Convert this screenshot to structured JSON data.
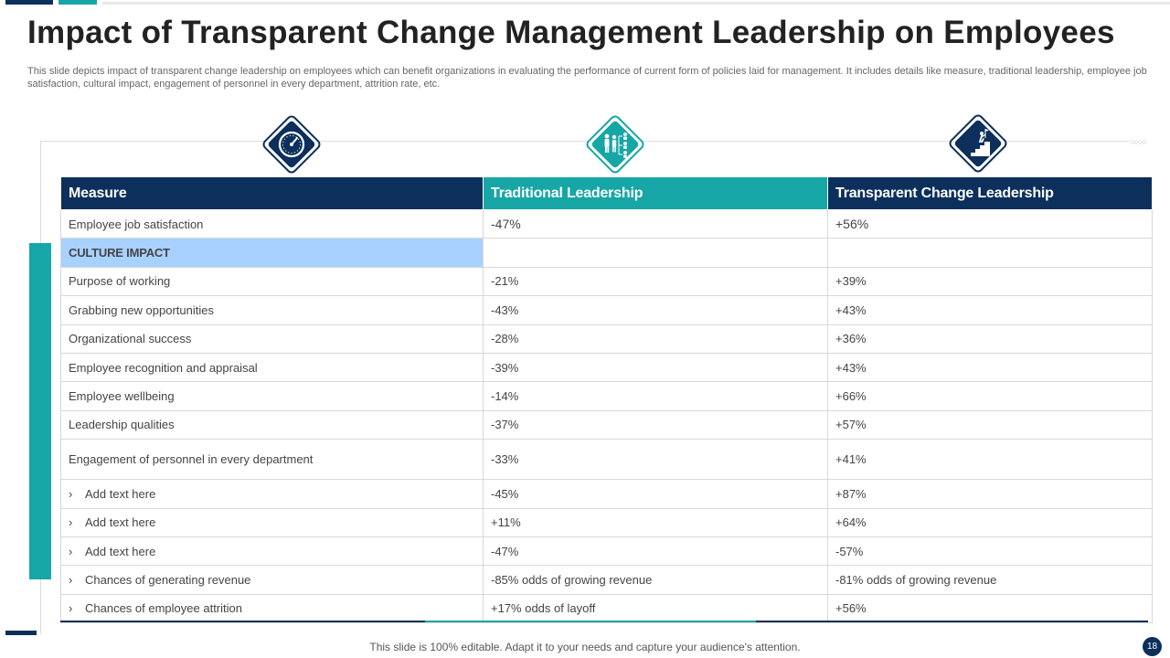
{
  "title": "Impact of Transparent Change Management Leadership on Employees",
  "subtitle": "This slide depicts impact of transparent change leadership on employees which can benefit organizations in evaluating the performance of current form of policies laid for management. It includes details like measure, traditional leadership, employee job satisfaction, cultural impact, engagement of personnel in every department, attrition rate, etc.",
  "colors": {
    "navy": "#0c2f5c",
    "teal": "#17a6a6",
    "section_blue": "#a8d1ff"
  },
  "icons": {
    "measure": "speedometer-icon",
    "traditional": "org-chart-icon",
    "transparent": "stairs-flag-icon"
  },
  "table": {
    "headers": {
      "measure": "Measure",
      "traditional": "Traditional Leadership",
      "transparent": "Transparent Change Leadership"
    },
    "rows": [
      {
        "measure": "Employee job satisfaction",
        "traditional": "-47%",
        "transparent": "+56%"
      },
      {
        "section": "CULTURE IMPACT"
      },
      {
        "measure": "Purpose of working",
        "traditional": "-21%",
        "transparent": "+39%"
      },
      {
        "measure": "Grabbing new opportunities",
        "traditional": "-43%",
        "transparent": "+43%"
      },
      {
        "measure": "Organizational success",
        "traditional": "-28%",
        "transparent": "+36%"
      },
      {
        "measure": "Employee recognition and appraisal",
        "traditional": "-39%",
        "transparent": "+43%"
      },
      {
        "measure": "Employee wellbeing",
        "traditional": "-14%",
        "transparent": "+66%"
      },
      {
        "measure": "Leadership qualities",
        "traditional": "-37%",
        "transparent": "+57%"
      },
      {
        "measure": "Engagement of personnel in every department",
        "traditional": "-33%",
        "transparent": "+41%"
      },
      {
        "measure": "Add text here",
        "traditional": "-45%",
        "transparent": "+87%"
      },
      {
        "measure": "Add text here",
        "traditional": "+11%",
        "transparent": "+64%"
      },
      {
        "measure": "Add text here",
        "traditional": "-47%",
        "transparent": "-57%"
      },
      {
        "measure": "Chances of generating revenue",
        "traditional": "-85% odds of growing revenue",
        "transparent": "-81% odds of growing revenue"
      },
      {
        "measure": "Chances of employee attrition",
        "traditional": "+17% odds of layoff",
        "transparent": "+56%"
      }
    ]
  },
  "footer": "This slide is 100% editable. Adapt it to your needs and capture your audience's attention.",
  "page_number": "18"
}
